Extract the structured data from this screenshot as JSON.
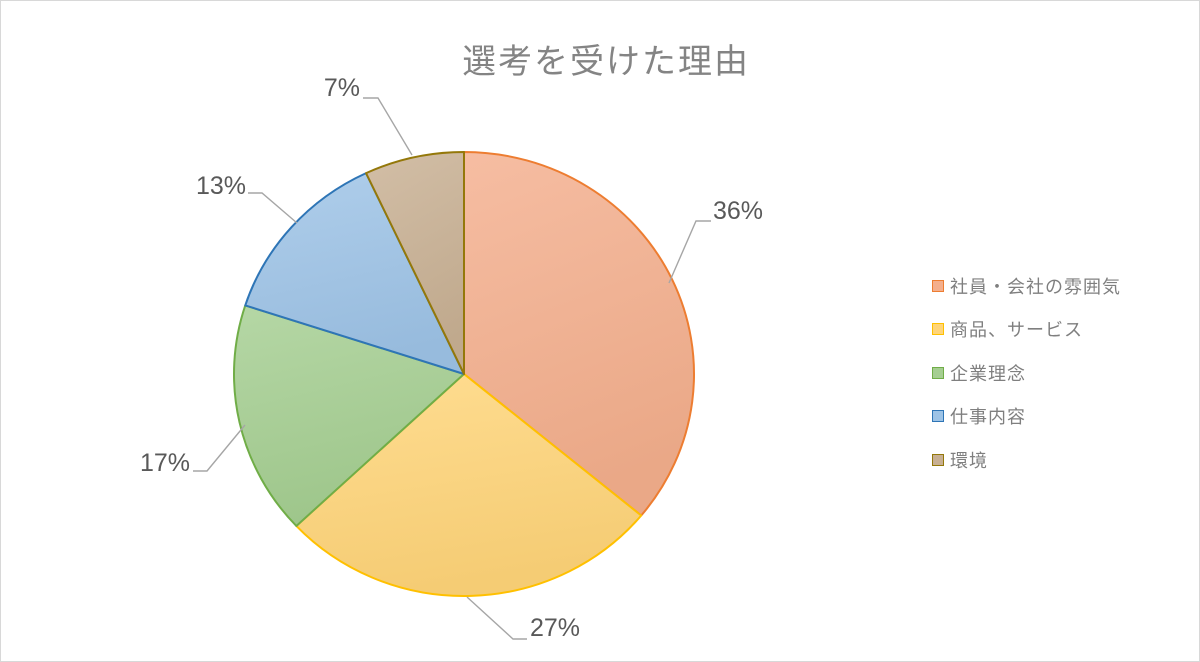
{
  "chart_data": {
    "type": "pie",
    "title": "選考を受けた理由",
    "legend_position": "right",
    "direction": "clockwise",
    "start_angle_deg": 0,
    "series": [
      {
        "label": "社員・会社の雰囲気",
        "value_pct": 36,
        "fill": "#F4AF8D",
        "border": "#ED7D31"
      },
      {
        "label": "商品、サービス",
        "value_pct": 27,
        "fill": "#FFD579",
        "border": "#FFC000"
      },
      {
        "label": "企業理念",
        "value_pct": 17,
        "fill": "#A5CE91",
        "border": "#70AD47"
      },
      {
        "label": "仕事内容",
        "value_pct": 13,
        "fill": "#9DC3E6",
        "border": "#2E75B6"
      },
      {
        "label": "環境",
        "value_pct": 7,
        "fill": "#C8B093",
        "border": "#94780A"
      }
    ],
    "data_labels": [
      "36%",
      "27%",
      "17%",
      "13%",
      "7%"
    ]
  },
  "styles": {
    "title_color": "#848484",
    "data_label_color": "#595959",
    "leader_line_color": "#A6A6A6",
    "legend_text_color": "#7F7F7F",
    "frame_border_color": "#D8D8D8",
    "background": "#FFFFFF"
  }
}
